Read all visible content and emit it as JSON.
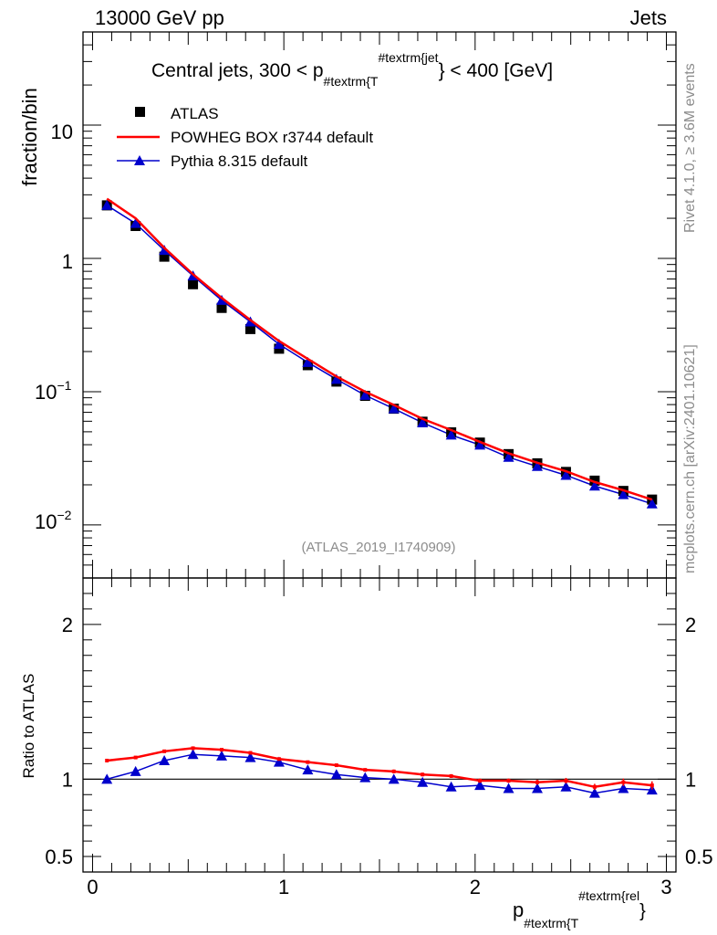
{
  "header": {
    "left": "13000 GeV pp",
    "right": "Jets"
  },
  "side_labels": {
    "rivet": "Rivet 4.1.0, ≥ 3.6M events",
    "mcplots": "mcplots.cern.ch [arXiv:2401.10621]"
  },
  "chart_data": [
    {
      "type": "scatter",
      "panel": "main",
      "title_part1": "Central jets, 300 < p",
      "title_sub": "#textrm{T",
      "title_sup": "#textrm{jet",
      "title_part2": "} < 400 [GeV]",
      "ylabel": "fraction/bin",
      "yscale": "log",
      "ylim": [
        0.004,
        50
      ],
      "xlim": [
        -0.05,
        3.05
      ],
      "ytick_labels": {
        "major_10": "10",
        "major_1": "1",
        "base_01": "10",
        "exp_01": "−1",
        "base_001": "10",
        "exp_001": "−2"
      },
      "watermark": "(ATLAS_2019_I1740909)",
      "x": [
        0.075,
        0.225,
        0.375,
        0.525,
        0.675,
        0.825,
        0.975,
        1.125,
        1.275,
        1.425,
        1.575,
        1.725,
        1.875,
        2.025,
        2.175,
        2.325,
        2.475,
        2.625,
        2.775,
        2.925
      ],
      "series": [
        {
          "name": "ATLAS",
          "marker": "square",
          "color": "#000000",
          "values": [
            2.5,
            1.75,
            1.03,
            0.64,
            0.425,
            0.295,
            0.21,
            0.158,
            0.119,
            0.093,
            0.0745,
            0.0595,
            0.0495,
            0.0415,
            0.034,
            0.029,
            0.025,
            0.0215,
            0.018,
            0.0155
          ]
        },
        {
          "name": "POWHEG BOX r3744 default",
          "marker": "line",
          "color": "#ff0000",
          "values": [
            2.8,
            2.0,
            1.2,
            0.76,
            0.505,
            0.345,
            0.24,
            0.176,
            0.13,
            0.1,
            0.0795,
            0.0625,
            0.0515,
            0.042,
            0.0345,
            0.0293,
            0.0253,
            0.021,
            0.0182,
            0.0155
          ]
        },
        {
          "name": "Pythia 8.315 default",
          "marker": "triangle",
          "color": "#0000cc",
          "values": [
            2.5,
            1.83,
            1.15,
            0.74,
            0.485,
            0.334,
            0.227,
            0.166,
            0.124,
            0.094,
            0.0745,
            0.0585,
            0.0473,
            0.0398,
            0.0322,
            0.0275,
            0.0236,
            0.0196,
            0.0169,
            0.0144
          ]
        }
      ]
    },
    {
      "type": "line",
      "panel": "ratio",
      "ylabel": "Ratio to ATLAS",
      "xlabel": "p",
      "xlabel_sub": "#textrm{T",
      "xlabel_sup": "#textrm{rel",
      "xlabel_close": "}",
      "ylim": [
        0.4,
        2.3
      ],
      "xlim": [
        -0.05,
        3.05
      ],
      "yticks": [
        0.5,
        1,
        2
      ],
      "ytick_labels": [
        "0.5",
        "1",
        "2"
      ],
      "xticks": [
        0,
        1,
        2,
        3
      ],
      "xtick_labels": [
        "0",
        "1",
        "2",
        "3"
      ],
      "x": [
        0.075,
        0.225,
        0.375,
        0.525,
        0.675,
        0.825,
        0.975,
        1.125,
        1.275,
        1.425,
        1.575,
        1.725,
        1.875,
        2.025,
        2.175,
        2.325,
        2.475,
        2.625,
        2.775,
        2.925
      ],
      "series": [
        {
          "name": "POWHEG BOX r3744 default",
          "color": "#ff0000",
          "values": [
            1.12,
            1.14,
            1.18,
            1.2,
            1.19,
            1.17,
            1.13,
            1.11,
            1.09,
            1.06,
            1.05,
            1.03,
            1.02,
            0.99,
            0.99,
            0.98,
            0.99,
            0.95,
            0.98,
            0.96
          ],
          "errors": [
            0.008,
            0.008,
            0.008,
            0.008,
            0.008,
            0.008,
            0.01,
            0.01,
            0.01,
            0.01,
            0.012,
            0.012,
            0.012,
            0.014,
            0.014,
            0.016,
            0.018,
            0.02,
            0.024,
            0.026
          ]
        },
        {
          "name": "Pythia 8.315 default",
          "color": "#0000cc",
          "values": [
            1.0,
            1.05,
            1.12,
            1.16,
            1.15,
            1.14,
            1.11,
            1.06,
            1.03,
            1.01,
            1.0,
            0.98,
            0.95,
            0.96,
            0.94,
            0.94,
            0.95,
            0.91,
            0.94,
            0.93
          ],
          "errors": [
            0,
            0,
            0,
            0,
            0,
            0,
            0,
            0,
            0,
            0,
            0,
            0,
            0,
            0,
            0,
            0,
            0,
            0,
            0,
            0
          ]
        }
      ]
    }
  ]
}
